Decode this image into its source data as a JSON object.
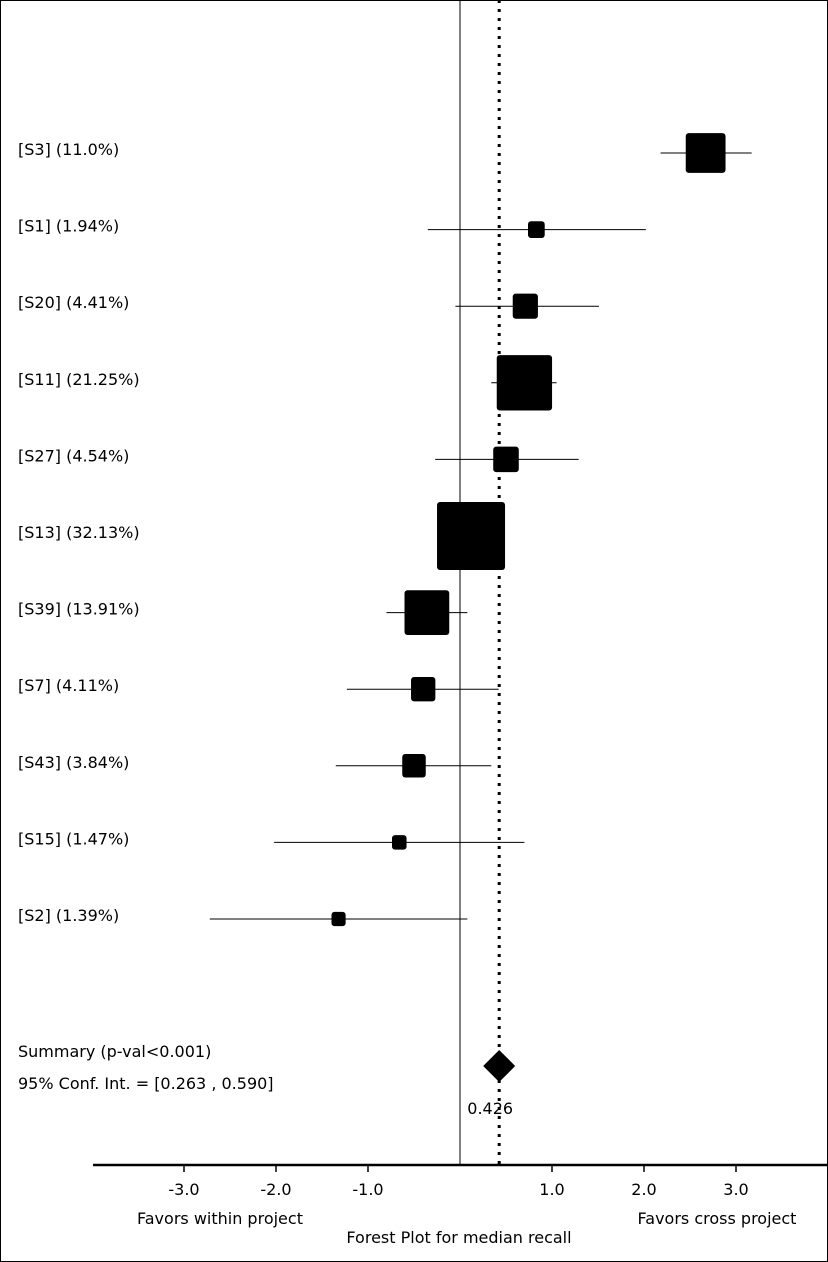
{
  "chart_data": {
    "type": "forest",
    "title": "Forest Plot for median recall",
    "x_left_label": "Favors within project",
    "x_right_label": "Favors cross project",
    "xlim": [
      -4.0,
      4.0
    ],
    "x_ticks": [
      {
        "value": -3.0,
        "label": "-3.0"
      },
      {
        "value": -2.0,
        "label": "-2.0"
      },
      {
        "value": -1.0,
        "label": "-1.0"
      },
      {
        "value": 1.0,
        "label": "1.0"
      },
      {
        "value": 2.0,
        "label": "2.0"
      },
      {
        "value": 3.0,
        "label": "3.0"
      }
    ],
    "null_line": 0.0,
    "studies": [
      {
        "label": "[S3] (11.0%)",
        "weight": 11.0,
        "estimate": 2.67,
        "ci": [
          2.18,
          3.17
        ]
      },
      {
        "label": "[S1] (1.94%)",
        "weight": 1.94,
        "estimate": 0.83,
        "ci": [
          -0.35,
          2.02
        ]
      },
      {
        "label": "[S20] (4.41%)",
        "weight": 4.41,
        "estimate": 0.71,
        "ci": [
          -0.05,
          1.51
        ]
      },
      {
        "label": "[S11] (21.25%)",
        "weight": 21.25,
        "estimate": 0.7,
        "ci": [
          0.34,
          1.05
        ]
      },
      {
        "label": "[S27] (4.54%)",
        "weight": 4.54,
        "estimate": 0.5,
        "ci": [
          -0.27,
          1.29
        ]
      },
      {
        "label": "[S13] (32.13%)",
        "weight": 32.13,
        "estimate": 0.12,
        "ci": [
          -0.22,
          0.46
        ]
      },
      {
        "label": "[S39] (13.91%)",
        "weight": 13.91,
        "estimate": -0.36,
        "ci": [
          -0.8,
          0.08
        ]
      },
      {
        "label": "[S7] (4.11%)",
        "weight": 4.11,
        "estimate": -0.4,
        "ci": [
          -1.23,
          0.42
        ]
      },
      {
        "label": "[S43] (3.84%)",
        "weight": 3.84,
        "estimate": -0.5,
        "ci": [
          -1.35,
          0.34
        ]
      },
      {
        "label": "[S15] (1.47%)",
        "weight": 1.47,
        "estimate": -0.66,
        "ci": [
          -2.02,
          0.7
        ]
      },
      {
        "label": "[S2] (1.39%)",
        "weight": 1.39,
        "estimate": -1.32,
        "ci": [
          -2.72,
          0.08
        ]
      }
    ],
    "summary": {
      "label": "Summary (p-val<0.001)",
      "ci_label": "95% Conf. Int. = [0.263 , 0.590]",
      "estimate": 0.426,
      "estimate_label": "0.426",
      "ci": [
        0.263,
        0.59
      ]
    }
  }
}
